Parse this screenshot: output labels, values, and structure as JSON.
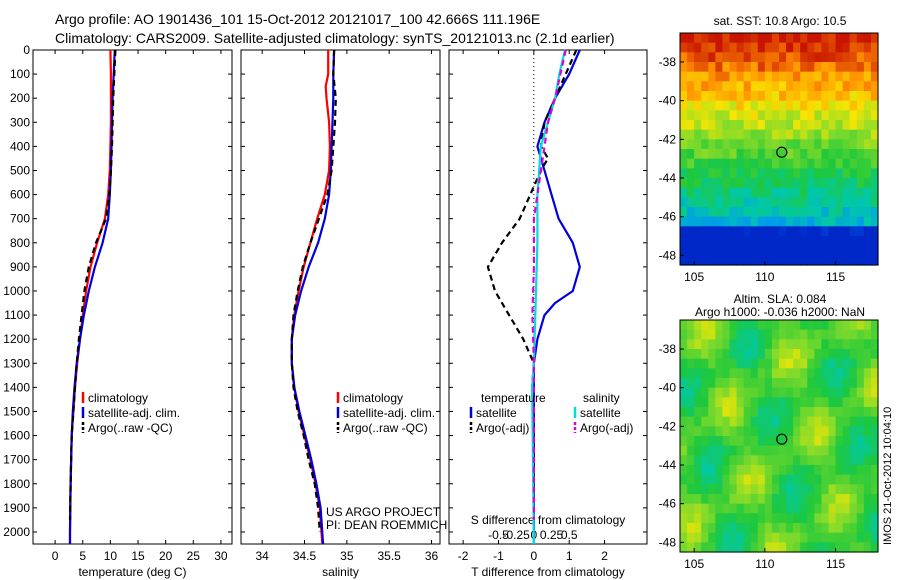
{
  "header": {
    "line1": "Argo profile: AO 1901436_101 15-Oct-2012 20121017_100 42.666S 111.196E",
    "line2": "Climatology: CARS2009. Satellite-adjusted climatology: synTS_20121013.nc (2.1d earlier)"
  },
  "chart_data": [
    {
      "type": "line",
      "id": "temperature",
      "xlabel": "temperature (deg C)",
      "ylabel": "",
      "xlim": [
        -4,
        32
      ],
      "ylim": [
        2050,
        0
      ],
      "xticks": [
        0,
        5,
        10,
        15,
        20,
        25,
        30
      ],
      "yticks": [
        0,
        100,
        200,
        300,
        400,
        500,
        600,
        700,
        800,
        900,
        1000,
        1100,
        1200,
        1300,
        1400,
        1500,
        1600,
        1700,
        1800,
        1900,
        2000
      ],
      "legend": [
        "climatology",
        "satellite-adj. clim.",
        "Argo(..raw -QC)"
      ],
      "legend_position": "lower-middle",
      "series": [
        {
          "name": "climatology",
          "color": "#ff0000",
          "style": "solid",
          "points": [
            [
              10.0,
              0
            ],
            [
              10.1,
              100
            ],
            [
              10.1,
              200
            ],
            [
              10.1,
              300
            ],
            [
              10.0,
              400
            ],
            [
              9.9,
              500
            ],
            [
              9.6,
              600
            ],
            [
              9.0,
              700
            ],
            [
              7.6,
              800
            ],
            [
              6.4,
              900
            ],
            [
              5.6,
              1000
            ],
            [
              5.0,
              1100
            ],
            [
              4.5,
              1200
            ],
            [
              4.0,
              1300
            ],
            [
              3.6,
              1400
            ],
            [
              3.3,
              1500
            ],
            [
              3.0,
              1600
            ],
            [
              2.8,
              1800
            ],
            [
              2.7,
              2000
            ],
            [
              2.7,
              2050
            ]
          ]
        },
        {
          "name": "satellite-adj. clim.",
          "color": "#0000dd",
          "style": "solid",
          "points": [
            [
              10.8,
              0
            ],
            [
              10.6,
              100
            ],
            [
              10.4,
              200
            ],
            [
              10.3,
              300
            ],
            [
              10.2,
              400
            ],
            [
              10.1,
              500
            ],
            [
              9.9,
              600
            ],
            [
              9.6,
              700
            ],
            [
              8.6,
              800
            ],
            [
              7.2,
              900
            ],
            [
              6.1,
              1000
            ],
            [
              5.2,
              1100
            ],
            [
              4.5,
              1200
            ],
            [
              3.9,
              1300
            ],
            [
              3.5,
              1400
            ],
            [
              3.2,
              1500
            ],
            [
              3.0,
              1600
            ],
            [
              2.8,
              1800
            ],
            [
              2.7,
              2000
            ],
            [
              2.7,
              2050
            ]
          ]
        },
        {
          "name": "Argo(..raw -QC)",
          "color": "#000000",
          "style": "dashed",
          "points": [
            [
              10.9,
              0
            ],
            [
              10.7,
              100
            ],
            [
              10.5,
              200
            ],
            [
              10.4,
              300
            ],
            [
              10.3,
              400
            ],
            [
              10.1,
              500
            ],
            [
              9.8,
              600
            ],
            [
              9.2,
              700
            ],
            [
              7.4,
              800
            ],
            [
              6.1,
              900
            ],
            [
              5.3,
              1000
            ],
            [
              4.8,
              1100
            ],
            [
              4.3,
              1200
            ],
            [
              3.9,
              1300
            ],
            [
              3.6,
              1400
            ],
            [
              3.3,
              1500
            ],
            [
              3.0,
              1600
            ],
            [
              2.8,
              1800
            ],
            [
              2.7,
              1950
            ]
          ]
        }
      ]
    },
    {
      "type": "line",
      "id": "salinity",
      "xlabel": "salinity",
      "ylabel": "",
      "xlim": [
        33.75,
        36.1
      ],
      "ylim": [
        2050,
        0
      ],
      "xticks": [
        34,
        34.5,
        35,
        35.5,
        36
      ],
      "legend": [
        "climatology",
        "satellite-adj. clim.",
        "Argo(..raw -QC)"
      ],
      "legend_position": "lower-middle",
      "annotation": [
        "US ARGO PROJECT",
        "PI: DEAN ROEMMICH"
      ],
      "series": [
        {
          "name": "climatology",
          "color": "#ff0000",
          "style": "solid",
          "points": [
            [
              34.78,
              0
            ],
            [
              34.78,
              100
            ],
            [
              34.75,
              150
            ],
            [
              34.76,
              200
            ],
            [
              34.79,
              300
            ],
            [
              34.8,
              400
            ],
            [
              34.79,
              500
            ],
            [
              34.74,
              600
            ],
            [
              34.65,
              700
            ],
            [
              34.57,
              800
            ],
            [
              34.49,
              900
            ],
            [
              34.43,
              1000
            ],
            [
              34.38,
              1100
            ],
            [
              34.35,
              1200
            ],
            [
              34.35,
              1300
            ],
            [
              34.38,
              1400
            ],
            [
              34.43,
              1500
            ],
            [
              34.5,
              1600
            ],
            [
              34.57,
              1700
            ],
            [
              34.63,
              1800
            ],
            [
              34.68,
              1900
            ],
            [
              34.71,
              2050
            ]
          ]
        },
        {
          "name": "satellite-adj. clim.",
          "color": "#0000dd",
          "style": "solid",
          "points": [
            [
              34.85,
              0
            ],
            [
              34.84,
              100
            ],
            [
              34.84,
              200
            ],
            [
              34.83,
              300
            ],
            [
              34.82,
              400
            ],
            [
              34.81,
              500
            ],
            [
              34.79,
              600
            ],
            [
              34.74,
              700
            ],
            [
              34.66,
              800
            ],
            [
              34.55,
              900
            ],
            [
              34.46,
              1000
            ],
            [
              34.39,
              1100
            ],
            [
              34.35,
              1200
            ],
            [
              34.35,
              1300
            ],
            [
              34.38,
              1400
            ],
            [
              34.44,
              1500
            ],
            [
              34.51,
              1600
            ],
            [
              34.58,
              1700
            ],
            [
              34.64,
              1800
            ],
            [
              34.69,
              1900
            ],
            [
              34.72,
              2050
            ]
          ]
        },
        {
          "name": "Argo(..raw -QC)",
          "color": "#000000",
          "style": "dashed",
          "points": [
            [
              34.85,
              0
            ],
            [
              34.84,
              100
            ],
            [
              34.87,
              200
            ],
            [
              34.86,
              300
            ],
            [
              34.84,
              400
            ],
            [
              34.82,
              500
            ],
            [
              34.77,
              600
            ],
            [
              34.67,
              700
            ],
            [
              34.57,
              800
            ],
            [
              34.48,
              900
            ],
            [
              34.42,
              1000
            ],
            [
              34.37,
              1100
            ],
            [
              34.35,
              1200
            ],
            [
              34.35,
              1300
            ],
            [
              34.37,
              1400
            ],
            [
              34.42,
              1500
            ],
            [
              34.49,
              1600
            ],
            [
              34.55,
              1700
            ],
            [
              34.62,
              1800
            ],
            [
              34.66,
              1900
            ],
            [
              34.68,
              2000
            ]
          ]
        }
      ]
    },
    {
      "type": "line",
      "id": "difference",
      "xlabel": "T difference from climatology",
      "xlabel_top": "S difference from climatology",
      "ylabel": "",
      "xlim": [
        -2.4,
        3.2
      ],
      "ylim": [
        2050,
        0
      ],
      "xticks": [
        -2,
        -1,
        0,
        1,
        2
      ],
      "xticks_s": [
        -0.5,
        -0.25,
        0,
        0.25,
        0.5
      ],
      "legend_temperature_title": "temperature",
      "legend_salinity_title": "salinity",
      "legend": [
        "satellite",
        "Argo(-adj)",
        "satellite",
        "Argo(-adj)"
      ],
      "legend_position": "lower-middle",
      "series": [
        {
          "name": "temperature satellite",
          "color": "#0000dd",
          "style": "solid",
          "points": [
            [
              1.3,
              0
            ],
            [
              1.0,
              100
            ],
            [
              0.6,
              200
            ],
            [
              0.3,
              300
            ],
            [
              0.1,
              400
            ],
            [
              0.3,
              500
            ],
            [
              0.5,
              600
            ],
            [
              0.7,
              700
            ],
            [
              1.1,
              800
            ],
            [
              1.3,
              900
            ],
            [
              1.1,
              1000
            ],
            [
              0.6,
              1050
            ],
            [
              0.3,
              1100
            ],
            [
              0.1,
              1200
            ],
            [
              0.0,
              1300
            ],
            [
              0.0,
              1400
            ],
            [
              0.0,
              2050
            ]
          ]
        },
        {
          "name": "temperature Argo(-adj)",
          "color": "#000000",
          "style": "dashed",
          "points": [
            [
              1.2,
              0
            ],
            [
              0.9,
              100
            ],
            [
              0.6,
              200
            ],
            [
              0.3,
              300
            ],
            [
              0.2,
              400
            ],
            [
              0.4,
              450
            ],
            [
              0.2,
              500
            ],
            [
              -0.1,
              600
            ],
            [
              -0.4,
              700
            ],
            [
              -0.9,
              800
            ],
            [
              -1.3,
              900
            ],
            [
              -1.1,
              1000
            ],
            [
              -0.7,
              1100
            ],
            [
              -0.3,
              1200
            ],
            [
              0.0,
              1300
            ],
            [
              -0.05,
              1400
            ],
            [
              0.0,
              1600
            ],
            [
              0.0,
              1800
            ],
            [
              0.0,
              1950
            ]
          ]
        },
        {
          "name": "salinity satellite",
          "color": "#00dddd",
          "style": "solid",
          "points": [
            [
              0.88,
              0
            ],
            [
              0.72,
              100
            ],
            [
              0.6,
              200
            ],
            [
              0.4,
              300
            ],
            [
              0.2,
              400
            ],
            [
              0.1,
              600
            ],
            [
              0.1,
              800
            ],
            [
              0.0,
              1300
            ],
            [
              -0.05,
              1400
            ],
            [
              0.0,
              2050
            ]
          ]
        },
        {
          "name": "salinity Argo(-adj)",
          "color": "#dd00dd",
          "style": "dashed",
          "points": [
            [
              0.9,
              0
            ],
            [
              0.6,
              200
            ],
            [
              0.4,
              300
            ],
            [
              0.3,
              400
            ],
            [
              0.2,
              500
            ],
            [
              0.0,
              700
            ],
            [
              0.0,
              900
            ],
            [
              -0.04,
              1100
            ],
            [
              0.0,
              1300
            ],
            [
              0.0,
              1600
            ],
            [
              0.0,
              1950
            ]
          ]
        }
      ]
    },
    {
      "type": "heatmap",
      "id": "sst-map",
      "title": "sat. SST: 10.8  Argo: 10.5",
      "xlim": [
        104,
        118
      ],
      "ylim": [
        -48.5,
        -36.5
      ],
      "xticks": [
        105,
        110,
        115
      ],
      "yticks": [
        -38,
        -40,
        -42,
        -44,
        -46,
        -48
      ],
      "marker": [
        111.196,
        -42.666
      ]
    },
    {
      "type": "heatmap",
      "id": "sla-map",
      "title_line1": "Altim. SLA: 0.084",
      "title_line2": "Argo h1000: -0.036 h2000: NaN",
      "side_label": "IMOS 21-Oct-2012 10:04:10",
      "xlim": [
        104,
        118
      ],
      "ylim": [
        -48.5,
        -36.5
      ],
      "xticks": [
        105,
        110,
        115
      ],
      "yticks": [
        -38,
        -40,
        -42,
        -44,
        -46,
        -48
      ],
      "marker": [
        111.196,
        -42.666
      ]
    }
  ]
}
